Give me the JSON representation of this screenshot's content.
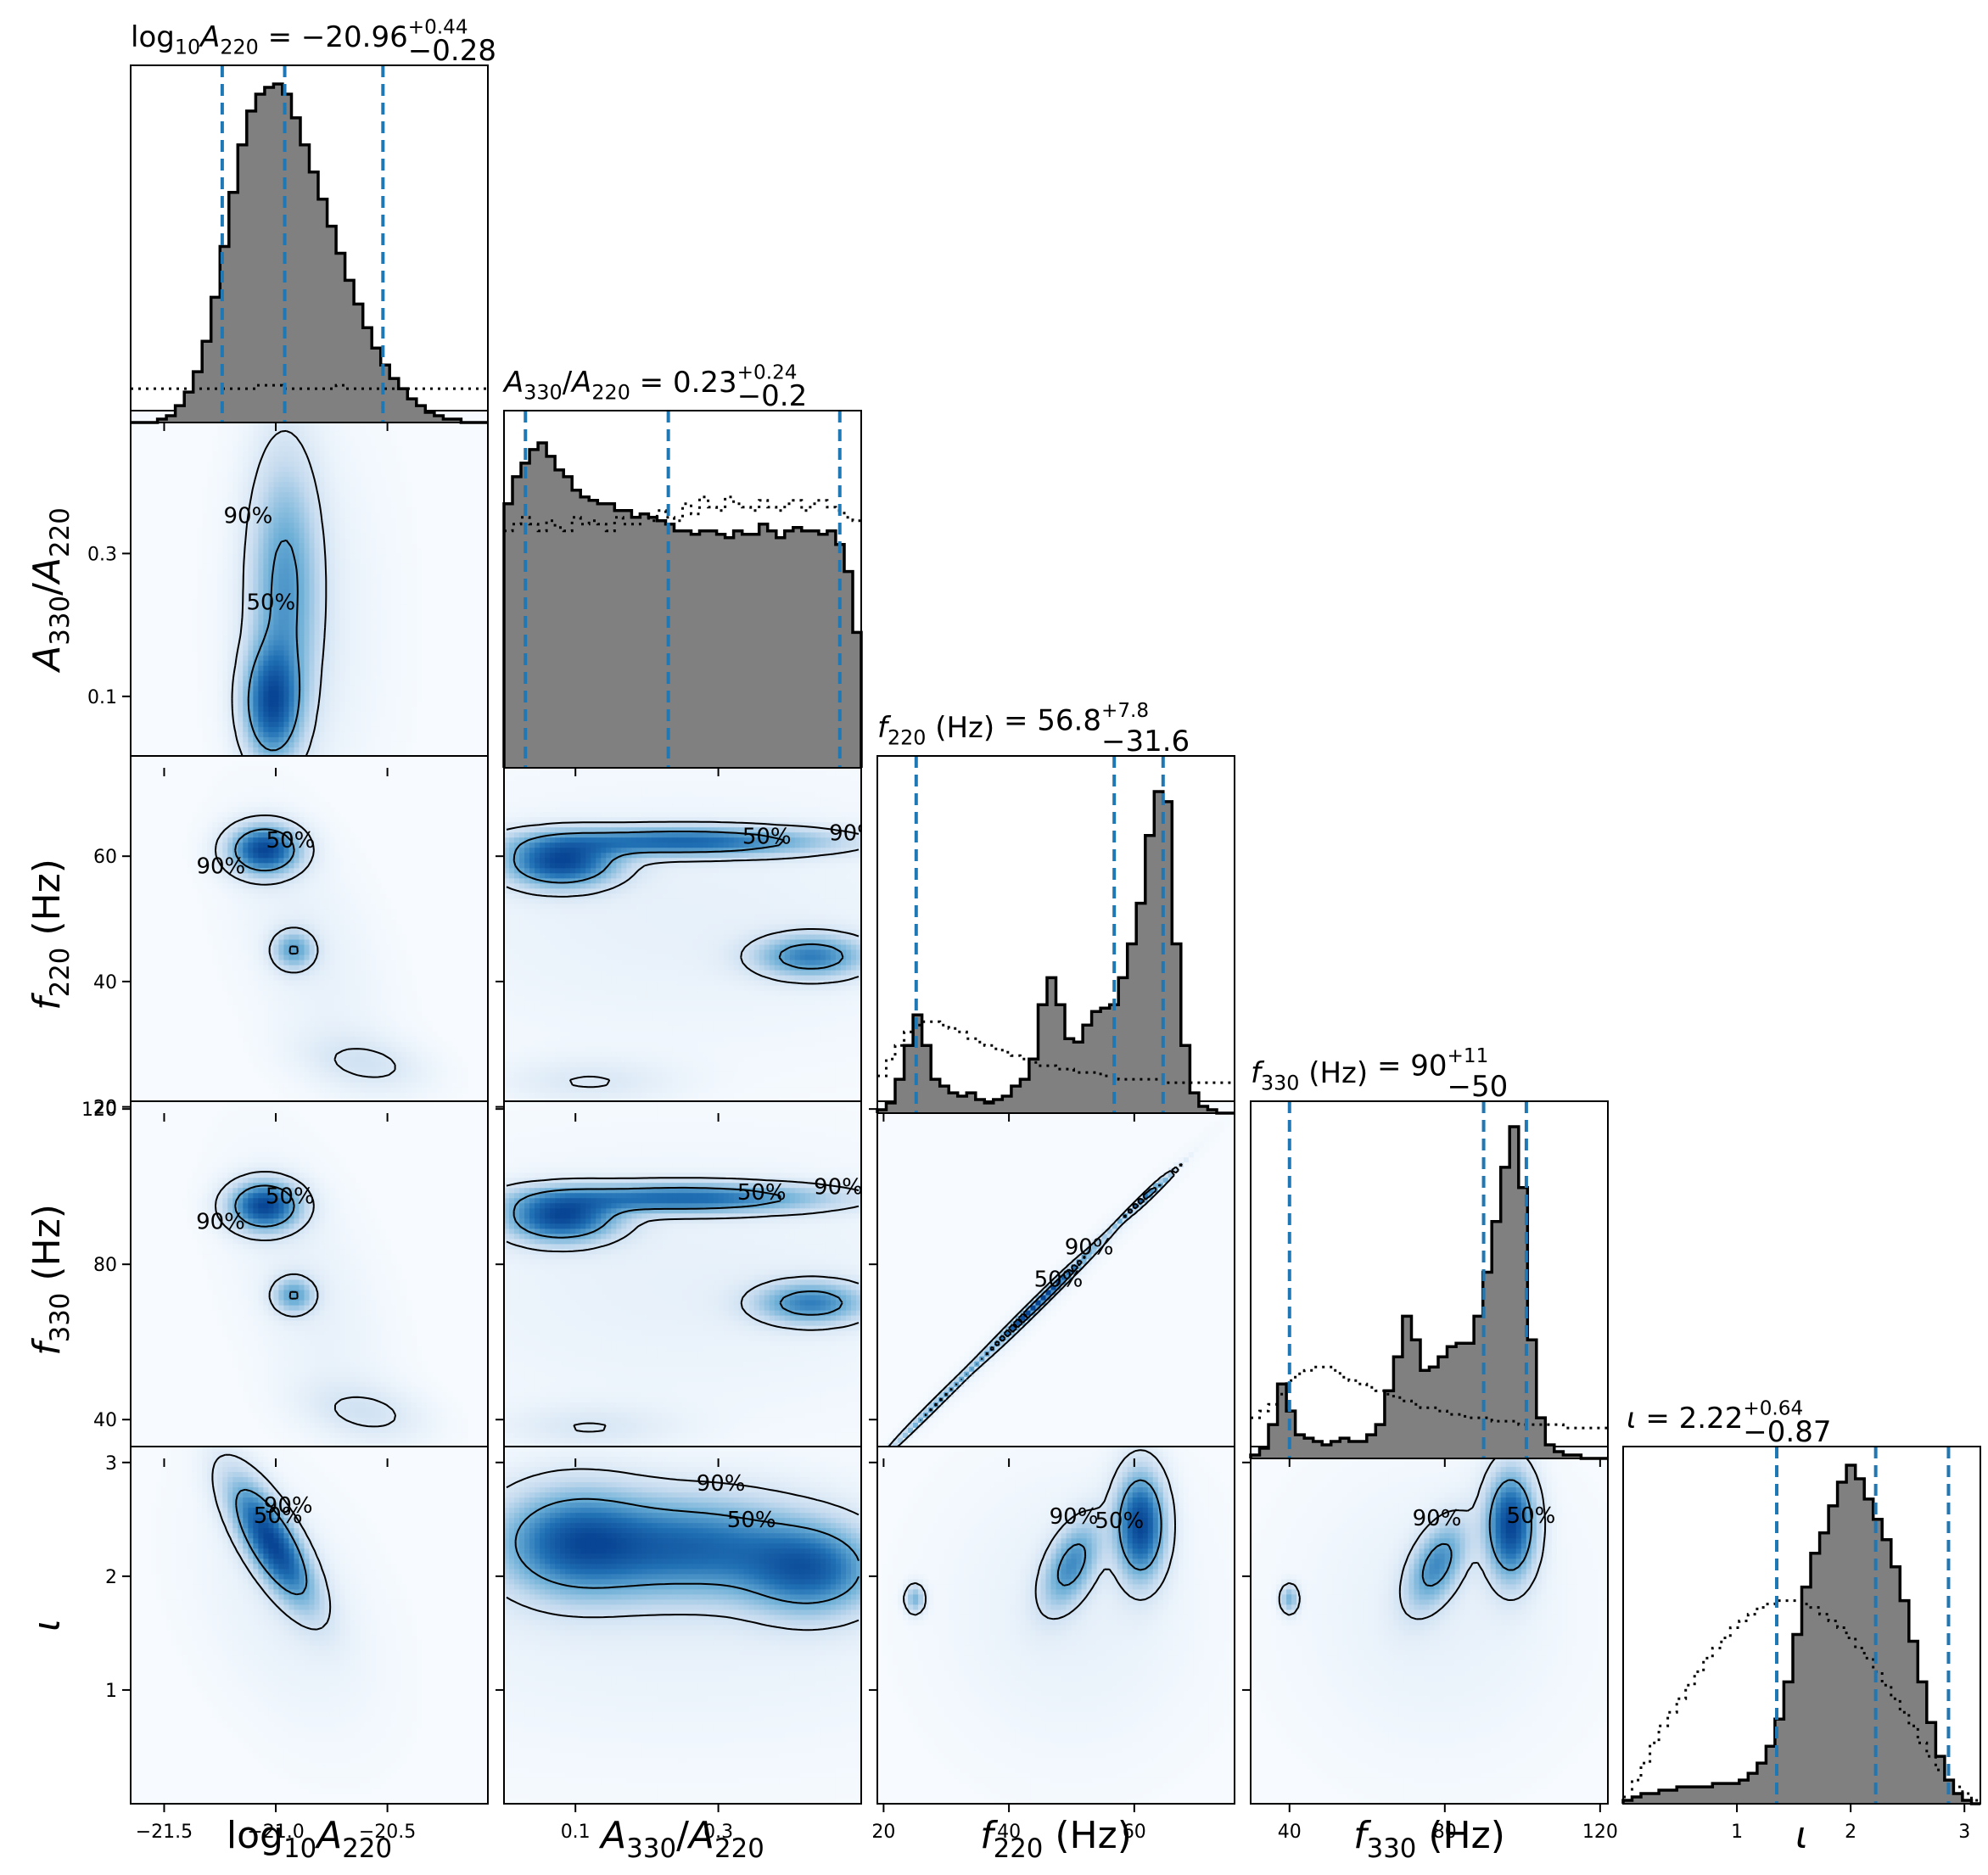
{
  "chart_data": {
    "type": "corner",
    "params": [
      {
        "key": "log10A220",
        "axis_label": "log10A220",
        "title": "log10A220 = −20.96 +0.44 −0.28",
        "median": -20.96,
        "err_plus": 0.44,
        "err_minus": 0.28,
        "quantiles": [
          -21.24,
          -20.96,
          -20.52
        ],
        "range": [
          -21.65,
          -20.05
        ],
        "ticks": [
          -21.5,
          -21.0,
          -20.5
        ],
        "tick_labels": [
          "−21.5",
          "−21.0",
          "−20.5"
        ],
        "hist": [
          0,
          0,
          0,
          0.01,
          0.02,
          0.05,
          0.09,
          0.15,
          0.24,
          0.37,
          0.52,
          0.68,
          0.82,
          0.92,
          0.97,
          0.99,
          1.0,
          0.97,
          0.9,
          0.82,
          0.74,
          0.66,
          0.58,
          0.5,
          0.42,
          0.35,
          0.28,
          0.22,
          0.17,
          0.13,
          0.1,
          0.07,
          0.05,
          0.03,
          0.02,
          0.01,
          0.01,
          0,
          0,
          0
        ],
        "prior": [
          0.1,
          0.1,
          0.1,
          0.1,
          0.1,
          0.1,
          0.1,
          0.1,
          0.1,
          0.1,
          0.1,
          0.1,
          0.1,
          0.1,
          0.11,
          0.11,
          0.11,
          0.1,
          0.1,
          0.1,
          0.1,
          0.1,
          0.1,
          0.11,
          0.1,
          0.1,
          0.1,
          0.1,
          0.1,
          0.1,
          0.1,
          0.1,
          0.1,
          0.1,
          0.1,
          0.1,
          0.1,
          0.1,
          0.1,
          0.1
        ]
      },
      {
        "key": "A330A220",
        "axis_label": "A330/A220",
        "title": "A330/A220 = 0.23 +0.24 −0.20",
        "median": 0.23,
        "err_plus": 0.24,
        "err_minus": 0.2,
        "quantiles": [
          0.03,
          0.23,
          0.47
        ],
        "range": [
          0.0,
          0.5
        ],
        "ticks": [
          0.1,
          0.3
        ],
        "tick_labels": [
          "0.1",
          "0.3"
        ],
        "hist": [
          0.78,
          0.86,
          0.9,
          0.94,
          0.96,
          0.92,
          0.88,
          0.86,
          0.82,
          0.8,
          0.79,
          0.78,
          0.78,
          0.76,
          0.76,
          0.74,
          0.75,
          0.74,
          0.73,
          0.72,
          0.7,
          0.7,
          0.69,
          0.7,
          0.7,
          0.69,
          0.68,
          0.7,
          0.69,
          0.69,
          0.72,
          0.7,
          0.68,
          0.7,
          0.71,
          0.7,
          0.7,
          0.69,
          0.7,
          0.66,
          0.58,
          0.4
        ],
        "prior": [
          0.7,
          0.72,
          0.74,
          0.72,
          0.7,
          0.73,
          0.71,
          0.7,
          0.74,
          0.72,
          0.73,
          0.72,
          0.7,
          0.74,
          0.72,
          0.72,
          0.75,
          0.73,
          0.76,
          0.74,
          0.73,
          0.78,
          0.75,
          0.8,
          0.77,
          0.76,
          0.8,
          0.78,
          0.77,
          0.76,
          0.79,
          0.77,
          0.76,
          0.78,
          0.79,
          0.76,
          0.78,
          0.79,
          0.77,
          0.76,
          0.74,
          0.73
        ]
      },
      {
        "key": "f220",
        "axis_label": "f220 (Hz)",
        "title": "f220 (Hz) = 56.8 +7.8 −31.6",
        "median": 56.8,
        "err_plus": 7.8,
        "err_minus": 31.6,
        "quantiles": [
          25.2,
          56.8,
          64.6
        ],
        "range": [
          19.0,
          76.0
        ],
        "ticks": [
          20,
          40,
          60
        ],
        "tick_labels": [
          "20",
          "40",
          "60"
        ],
        "hist": [
          0.01,
          0.03,
          0.1,
          0.2,
          0.29,
          0.2,
          0.1,
          0.08,
          0.06,
          0.05,
          0.06,
          0.04,
          0.03,
          0.04,
          0.05,
          0.08,
          0.1,
          0.16,
          0.32,
          0.4,
          0.32,
          0.22,
          0.21,
          0.26,
          0.3,
          0.31,
          0.32,
          0.4,
          0.5,
          0.62,
          0.82,
          0.95,
          0.92,
          0.5,
          0.2,
          0.06,
          0.02,
          0.01,
          0,
          0
        ],
        "prior": [
          0.11,
          0.16,
          0.2,
          0.24,
          0.26,
          0.27,
          0.27,
          0.26,
          0.25,
          0.24,
          0.22,
          0.21,
          0.2,
          0.19,
          0.18,
          0.17,
          0.16,
          0.15,
          0.14,
          0.14,
          0.13,
          0.13,
          0.12,
          0.12,
          0.12,
          0.11,
          0.11,
          0.1,
          0.1,
          0.1,
          0.1,
          0.1,
          0.09,
          0.09,
          0.09,
          0.09,
          0.09,
          0.09,
          0.09,
          0.09
        ]
      },
      {
        "key": "f330",
        "axis_label": "f330 (Hz)",
        "title": "f330 (Hz) = 90 +11 −50",
        "median": 90,
        "err_plus": 11,
        "err_minus": 50,
        "quantiles": [
          40,
          90,
          101
        ],
        "range": [
          30.0,
          122.0
        ],
        "ticks": [
          40,
          80,
          120
        ],
        "tick_labels": [
          "40",
          "80",
          "120"
        ],
        "hist": [
          0.01,
          0.03,
          0.1,
          0.22,
          0.14,
          0.07,
          0.06,
          0.05,
          0.04,
          0.05,
          0.06,
          0.05,
          0.05,
          0.07,
          0.1,
          0.2,
          0.3,
          0.42,
          0.35,
          0.26,
          0.27,
          0.3,
          0.33,
          0.34,
          0.34,
          0.42,
          0.55,
          0.7,
          0.86,
          0.98,
          0.8,
          0.35,
          0.12,
          0.04,
          0.02,
          0.01,
          0.01,
          0,
          0,
          0
        ],
        "prior": [
          0.12,
          0.14,
          0.16,
          0.19,
          0.23,
          0.25,
          0.26,
          0.27,
          0.27,
          0.26,
          0.24,
          0.23,
          0.22,
          0.21,
          0.2,
          0.19,
          0.18,
          0.17,
          0.16,
          0.15,
          0.15,
          0.14,
          0.13,
          0.13,
          0.12,
          0.12,
          0.12,
          0.11,
          0.11,
          0.11,
          0.1,
          0.1,
          0.1,
          0.1,
          0.1,
          0.09,
          0.09,
          0.09,
          0.09,
          0.09
        ]
      },
      {
        "key": "iota",
        "axis_label": "ι",
        "title": "ι = 2.22 +0.64 −0.87",
        "median": 2.22,
        "err_plus": 0.64,
        "err_minus": 0.87,
        "quantiles": [
          1.35,
          2.22,
          2.86
        ],
        "range": [
          0.0,
          3.14
        ],
        "ticks": [
          1,
          2,
          3
        ],
        "tick_labels": [
          "1",
          "2",
          "3"
        ],
        "hist": [
          0.01,
          0.02,
          0.03,
          0.03,
          0.04,
          0.04,
          0.05,
          0.05,
          0.05,
          0.05,
          0.06,
          0.06,
          0.06,
          0.07,
          0.09,
          0.12,
          0.17,
          0.25,
          0.36,
          0.5,
          0.64,
          0.74,
          0.8,
          0.88,
          0.95,
          1.0,
          0.96,
          0.9,
          0.84,
          0.78,
          0.7,
          0.6,
          0.48,
          0.36,
          0.24,
          0.14,
          0.07,
          0.03,
          0.01,
          0
        ],
        "prior": [
          0.02,
          0.07,
          0.12,
          0.18,
          0.23,
          0.27,
          0.31,
          0.35,
          0.39,
          0.43,
          0.46,
          0.49,
          0.52,
          0.54,
          0.56,
          0.58,
          0.59,
          0.6,
          0.6,
          0.6,
          0.59,
          0.58,
          0.56,
          0.54,
          0.52,
          0.49,
          0.46,
          0.43,
          0.39,
          0.35,
          0.31,
          0.27,
          0.23,
          0.18,
          0.14,
          0.1,
          0.07,
          0.05,
          0.03,
          0.01
        ]
      }
    ],
    "contour_labels": [
      "50%",
      "90%"
    ],
    "colors": {
      "hist_fill": "#808080",
      "quantile_line": "#1f77b4",
      "density_light": "#f7fbff",
      "density_dark": "#08519c"
    },
    "pairs": [
      {
        "row": 1,
        "col": 0,
        "blobs": [
          {
            "x": -21.02,
            "y": 0.09,
            "sx": 0.08,
            "sy": 0.05,
            "rho": 0,
            "w": 1.0
          },
          {
            "x": -20.96,
            "y": 0.25,
            "sx": 0.1,
            "sy": 0.12,
            "rho": 0,
            "w": 0.6
          }
        ],
        "bg": [
          {
            "x": -20.85,
            "y": 0.2,
            "sx": 0.25,
            "sy": 0.2,
            "rho": 0,
            "w": 1
          }
        ]
      },
      {
        "row": 2,
        "col": 0,
        "blobs": [
          {
            "x": -21.05,
            "y": 61,
            "sx": 0.1,
            "sy": 2.5,
            "rho": 0,
            "w": 1.0
          },
          {
            "x": -20.92,
            "y": 45,
            "sx": 0.06,
            "sy": 2,
            "rho": 0,
            "w": 0.45
          },
          {
            "x": -20.6,
            "y": 27,
            "sx": 0.18,
            "sy": 3,
            "rho": -0.3,
            "w": 0.12
          }
        ],
        "bg": [
          {
            "x": -20.85,
            "y": 45,
            "sx": 0.25,
            "sy": 15,
            "rho": -0.5,
            "w": 1
          }
        ]
      },
      {
        "row": 2,
        "col": 1,
        "blobs": [
          {
            "x": 0.08,
            "y": 59,
            "sx": 0.05,
            "sy": 2.5,
            "rho": 0,
            "w": 1.0
          },
          {
            "x": 0.25,
            "y": 62.3,
            "sx": 0.13,
            "sy": 1.5,
            "rho": 0,
            "w": 0.8
          },
          {
            "x": 0.43,
            "y": 44,
            "sx": 0.05,
            "sy": 2.2,
            "rho": 0,
            "w": 0.65
          },
          {
            "x": 0.12,
            "y": 24,
            "sx": 0.08,
            "sy": 2.5,
            "rho": 0,
            "w": 0.1
          }
        ],
        "bg": [
          {
            "x": 0.25,
            "y": 50,
            "sx": 0.3,
            "sy": 15,
            "rho": 0,
            "w": 1
          }
        ]
      },
      {
        "row": 3,
        "col": 0,
        "blobs": [
          {
            "x": -21.05,
            "y": 95,
            "sx": 0.1,
            "sy": 4,
            "rho": 0,
            "w": 1.0
          },
          {
            "x": -20.92,
            "y": 72,
            "sx": 0.06,
            "sy": 3,
            "rho": 0,
            "w": 0.45
          },
          {
            "x": -20.6,
            "y": 42,
            "sx": 0.18,
            "sy": 5,
            "rho": -0.3,
            "w": 0.12
          }
        ],
        "bg": [
          {
            "x": -20.85,
            "y": 72,
            "sx": 0.25,
            "sy": 25,
            "rho": -0.5,
            "w": 1
          }
        ]
      },
      {
        "row": 3,
        "col": 1,
        "blobs": [
          {
            "x": 0.08,
            "y": 92,
            "sx": 0.05,
            "sy": 4,
            "rho": 0,
            "w": 1.0
          },
          {
            "x": 0.25,
            "y": 97,
            "sx": 0.13,
            "sy": 2.5,
            "rho": 0,
            "w": 0.8
          },
          {
            "x": 0.43,
            "y": 70,
            "sx": 0.05,
            "sy": 3.5,
            "rho": 0,
            "w": 0.65
          },
          {
            "x": 0.12,
            "y": 38,
            "sx": 0.08,
            "sy": 4,
            "rho": 0,
            "w": 0.1
          }
        ],
        "bg": [
          {
            "x": 0.25,
            "y": 75,
            "sx": 0.3,
            "sy": 25,
            "rho": 0,
            "w": 1
          }
        ]
      },
      {
        "row": 3,
        "col": 2,
        "blobs": [
          {
            "x": 62,
            "y": 97.5,
            "sx": 2.5,
            "sy": 3.9,
            "rho": 0.995,
            "w": 1.0
          },
          {
            "x": 45,
            "y": 70.5,
            "sx": 6,
            "sy": 9.5,
            "rho": 0.995,
            "w": 0.5
          },
          {
            "x": 28,
            "y": 43.5,
            "sx": 5,
            "sy": 8,
            "rho": 0.995,
            "w": 0.25
          }
        ],
        "bg": [
          {
            "x": 45,
            "y": 70,
            "sx": 15,
            "sy": 24,
            "rho": 0.99,
            "w": 1
          }
        ]
      },
      {
        "row": 4,
        "col": 0,
        "blobs": [
          {
            "x": -21.02,
            "y": 2.3,
            "sx": 0.12,
            "sy": 0.35,
            "rho": -0.75,
            "w": 1.0
          }
        ],
        "bg": [
          {
            "x": -20.95,
            "y": 1.7,
            "sx": 0.3,
            "sy": 0.8,
            "rho": -0.4,
            "w": 1
          }
        ]
      },
      {
        "row": 4,
        "col": 1,
        "blobs": [
          {
            "x": 0.1,
            "y": 2.3,
            "sx": 0.07,
            "sy": 0.3,
            "rho": 0,
            "w": 1.0
          },
          {
            "x": 0.27,
            "y": 2.25,
            "sx": 0.1,
            "sy": 0.28,
            "rho": 0,
            "w": 0.9
          },
          {
            "x": 0.43,
            "y": 2.05,
            "sx": 0.06,
            "sy": 0.25,
            "rho": 0,
            "w": 0.9
          }
        ],
        "bg": [
          {
            "x": 0.25,
            "y": 1.7,
            "sx": 0.35,
            "sy": 0.9,
            "rho": 0,
            "w": 1
          }
        ]
      },
      {
        "row": 4,
        "col": 2,
        "blobs": [
          {
            "x": 61,
            "y": 2.45,
            "sx": 2.5,
            "sy": 0.3,
            "rho": 0,
            "w": 1.0
          },
          {
            "x": 50,
            "y": 2.1,
            "sx": 3,
            "sy": 0.25,
            "rho": 0.5,
            "w": 0.55
          },
          {
            "x": 25,
            "y": 1.8,
            "sx": 1,
            "sy": 0.08,
            "rho": 0,
            "w": 0.4
          }
        ],
        "bg": [
          {
            "x": 50,
            "y": 1.7,
            "sx": 15,
            "sy": 0.9,
            "rho": 0,
            "w": 1
          }
        ]
      },
      {
        "row": 4,
        "col": 3,
        "blobs": [
          {
            "x": 97,
            "y": 2.45,
            "sx": 4,
            "sy": 0.3,
            "rho": 0,
            "w": 1.0
          },
          {
            "x": 78,
            "y": 2.1,
            "sx": 5,
            "sy": 0.25,
            "rho": 0.5,
            "w": 0.55
          },
          {
            "x": 40,
            "y": 1.8,
            "sx": 1.5,
            "sy": 0.08,
            "rho": 0,
            "w": 0.4
          }
        ],
        "bg": [
          {
            "x": 78,
            "y": 1.7,
            "sx": 25,
            "sy": 0.9,
            "rho": 0,
            "w": 1
          }
        ]
      }
    ]
  }
}
